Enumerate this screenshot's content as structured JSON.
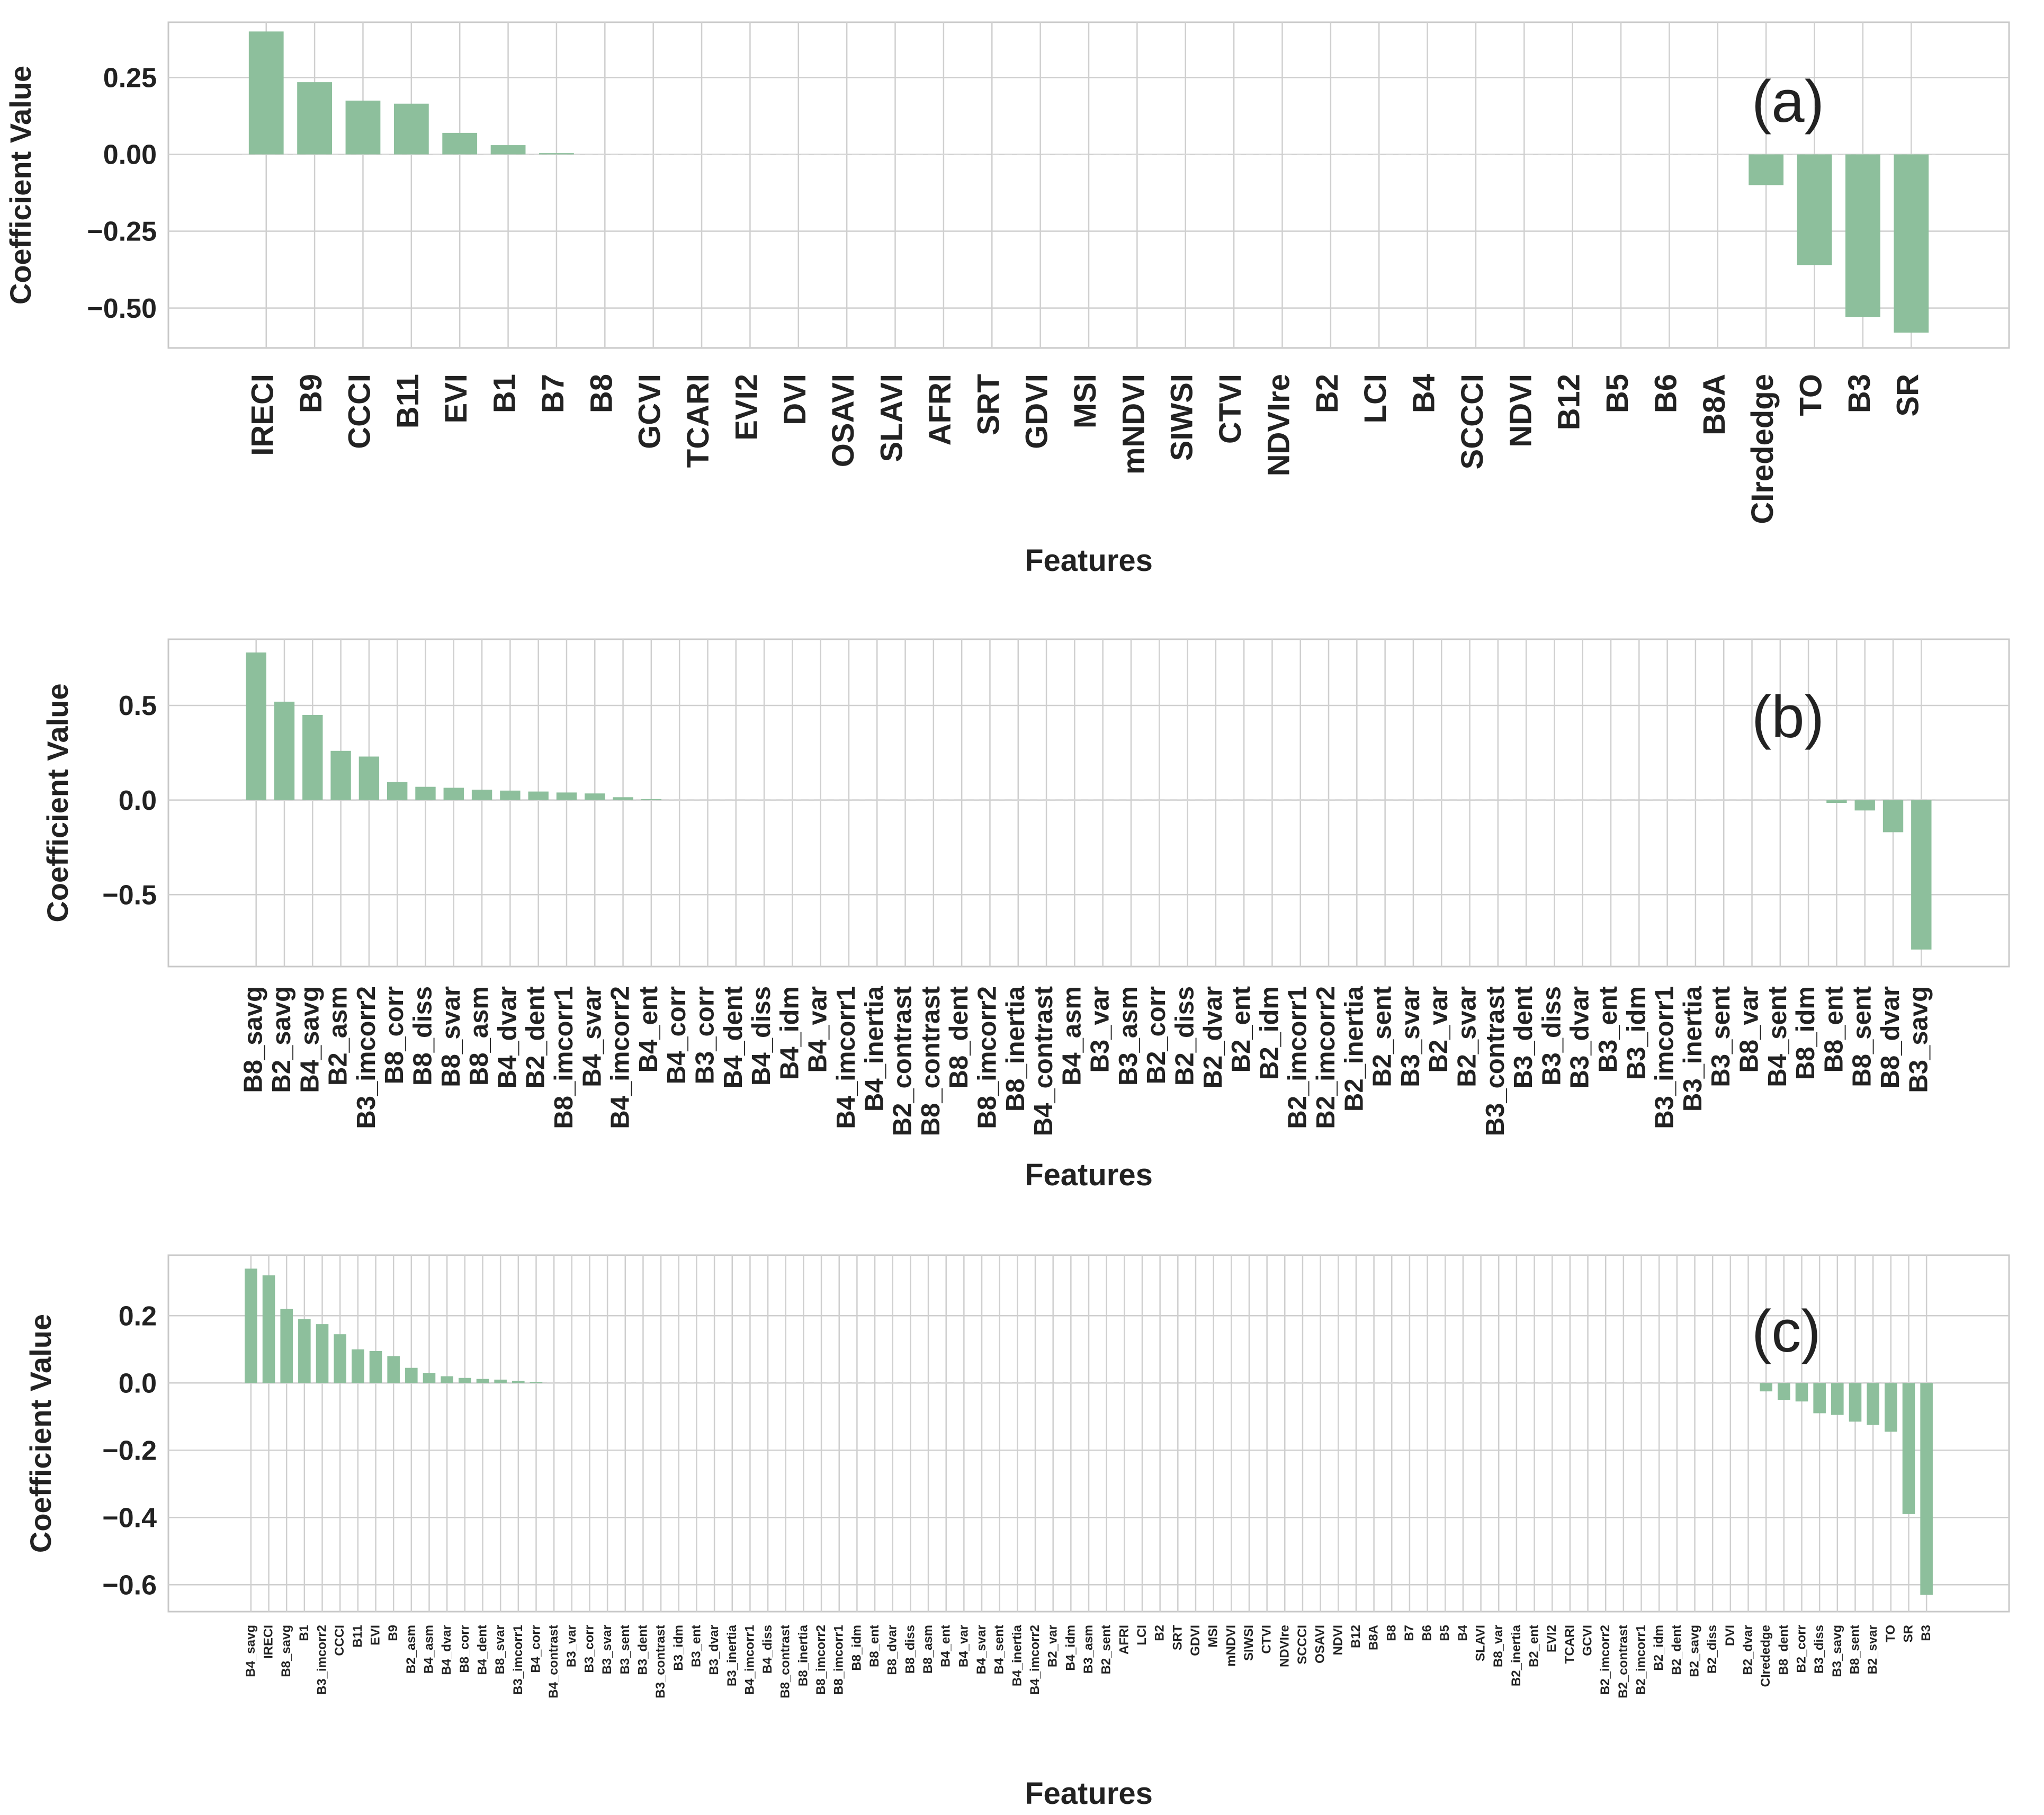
{
  "chart_data": [
    {
      "type": "bar",
      "panel_label": "(a)",
      "xlabel": "Features",
      "ylabel": "Coefficient Value",
      "ylim": [
        -0.63,
        0.43
      ],
      "yticks": [
        0.25,
        0.0,
        -0.25,
        -0.5
      ],
      "ytick_labels": [
        "0.25",
        "0.00",
        "−0.25",
        "−0.50"
      ],
      "bar_color": "#8dbf9c",
      "categories": [
        "IRECI",
        "B9",
        "CCCI",
        "B11",
        "EVI",
        "B1",
        "B7",
        "B8",
        "GCVI",
        "TCARI",
        "EVI2",
        "DVI",
        "OSAVI",
        "SLAVI",
        "AFRI",
        "SRT",
        "GDVI",
        "MSI",
        "mNDVI",
        "SIWSI",
        "CTVI",
        "NDVIre",
        "B2",
        "LCI",
        "B4",
        "SCCCI",
        "NDVI",
        "B12",
        "B5",
        "B6",
        "B8A",
        "CIrededge",
        "TO",
        "B3",
        "SR"
      ],
      "values": [
        0.4,
        0.235,
        0.175,
        0.165,
        0.07,
        0.03,
        0.004,
        0,
        0,
        0,
        0,
        0,
        0,
        0,
        0,
        0,
        0,
        0,
        0,
        0,
        0,
        0,
        0,
        0,
        0,
        0,
        0,
        0,
        0,
        0,
        0,
        -0.1,
        -0.36,
        -0.53,
        -0.58
      ]
    },
    {
      "type": "bar",
      "panel_label": "(b)",
      "xlabel": "Features",
      "ylabel": "Coefficient Value",
      "ylim": [
        -0.88,
        0.85
      ],
      "yticks": [
        0.5,
        0.0,
        -0.5
      ],
      "ytick_labels": [
        "0.5",
        "0.0",
        "−0.5"
      ],
      "bar_color": "#8dbf9c",
      "categories": [
        "B8_savg",
        "B2_savg",
        "B4_savg",
        "B2_asm",
        "B3_imcorr2",
        "B8_corr",
        "B8_diss",
        "B8_svar",
        "B8_asm",
        "B4_dvar",
        "B2_dent",
        "B8_imcorr1",
        "B4_svar",
        "B4_imcorr2",
        "B4_ent",
        "B4_corr",
        "B3_corr",
        "B4_dent",
        "B4_diss",
        "B4_idm",
        "B4_var",
        "B4_imcorr1",
        "B4_inertia",
        "B2_contrast",
        "B8_contrast",
        "B8_dent",
        "B8_imcorr2",
        "B8_inertia",
        "B4_contrast",
        "B4_asm",
        "B3_var",
        "B3_asm",
        "B2_corr",
        "B2_diss",
        "B2_dvar",
        "B2_ent",
        "B2_idm",
        "B2_imcorr1",
        "B2_imcorr2",
        "B2_inertia",
        "B2_sent",
        "B3_svar",
        "B2_var",
        "B2_svar",
        "B3_contrast",
        "B3_dent",
        "B3_diss",
        "B3_dvar",
        "B3_ent",
        "B3_idm",
        "B3_imcorr1",
        "B3_inertia",
        "B3_sent",
        "B8_var",
        "B4_sent",
        "B8_idm",
        "B8_ent",
        "B8_sent",
        "B8_dvar",
        "B3_savg"
      ],
      "values": [
        0.78,
        0.52,
        0.45,
        0.26,
        0.23,
        0.095,
        0.07,
        0.065,
        0.055,
        0.05,
        0.045,
        0.04,
        0.035,
        0.015,
        0.005,
        0,
        0,
        0,
        0,
        0,
        0,
        0,
        0,
        0,
        0,
        0,
        0,
        0,
        0,
        0,
        0,
        0,
        0,
        0,
        0,
        0,
        0,
        0,
        0,
        0,
        0,
        0,
        0,
        0,
        0,
        0,
        0,
        0,
        0,
        0,
        0,
        0,
        0,
        0,
        0,
        0,
        -0.015,
        -0.055,
        -0.17,
        -0.79
      ]
    },
    {
      "type": "bar",
      "panel_label": "(c)",
      "xlabel": "Features",
      "ylabel": "Coefficient Value",
      "ylim": [
        -0.68,
        0.38
      ],
      "yticks": [
        0.2,
        0.0,
        -0.2,
        -0.4,
        -0.6
      ],
      "ytick_labels": [
        "0.2",
        "0.0",
        "−0.2",
        "−0.4",
        "−0.6"
      ],
      "bar_color": "#8dbf9c",
      "categories": [
        "B4_savg",
        "IRECI",
        "B8_savg",
        "B1",
        "B3_imcorr2",
        "CCCI",
        "B11",
        "EVI",
        "B9",
        "B2_asm",
        "B4_asm",
        "B4_dvar",
        "B8_corr",
        "B4_dent",
        "B8_svar",
        "B3_imcorr1",
        "B4_corr",
        "B4_contrast",
        "B3_var",
        "B3_corr",
        "B3_svar",
        "B3_sent",
        "B3_dent",
        "B3_contrast",
        "B3_idm",
        "B3_ent",
        "B3_dvar",
        "B3_inertia",
        "B4_imcorr1",
        "B4_diss",
        "B8_contrast",
        "B8_inertia",
        "B8_imcorr2",
        "B8_imcorr1",
        "B8_idm",
        "B8_ent",
        "B8_dvar",
        "B8_diss",
        "B8_asm",
        "B4_ent",
        "B4_var",
        "B4_svar",
        "B4_sent",
        "B4_inertia",
        "B4_imcorr2",
        "B2_var",
        "B4_idm",
        "B3_asm",
        "B2_sent",
        "AFRI",
        "LCI",
        "B2",
        "SRT",
        "GDVI",
        "MSI",
        "mNDVI",
        "SIWSI",
        "CTVI",
        "NDVIre",
        "SCCCI",
        "OSAVI",
        "NDVI",
        "B12",
        "B8A",
        "B8",
        "B7",
        "B6",
        "B5",
        "B4",
        "SLAVI",
        "B8_var",
        "B2_inertia",
        "B2_ent",
        "EVI2",
        "TCARI",
        "GCVI",
        "B2_imcorr2",
        "B2_contrast",
        "B2_imcorr1",
        "B2_idm",
        "B2_dent",
        "B2_savg",
        "B2_diss",
        "DVI",
        "B2_dvar",
        "CIrededge",
        "B8_dent",
        "B2_corr",
        "B3_diss",
        "B3_savg",
        "B8_sent",
        "B2_svar",
        "TO",
        "SR",
        "B3"
      ],
      "values": [
        0.34,
        0.32,
        0.22,
        0.19,
        0.175,
        0.145,
        0.1,
        0.095,
        0.08,
        0.045,
        0.03,
        0.02,
        0.015,
        0.012,
        0.01,
        0.006,
        0.003,
        0,
        0,
        0,
        0,
        0,
        0,
        0,
        0,
        0,
        0,
        0,
        0,
        0,
        0,
        0,
        0,
        0,
        0,
        0,
        0,
        0,
        0,
        0,
        0,
        0,
        0,
        0,
        0,
        0,
        0,
        0,
        0,
        0,
        0,
        0,
        0,
        0,
        0,
        0,
        0,
        0,
        0,
        0,
        0,
        0,
        0,
        0,
        0,
        0,
        0,
        0,
        0,
        0,
        0,
        0,
        0,
        0,
        0,
        0,
        0,
        0,
        0,
        0,
        0,
        0,
        0,
        0,
        0,
        -0.025,
        -0.05,
        -0.055,
        -0.09,
        -0.095,
        -0.115,
        -0.125,
        -0.145,
        -0.39,
        -0.63
      ]
    }
  ]
}
